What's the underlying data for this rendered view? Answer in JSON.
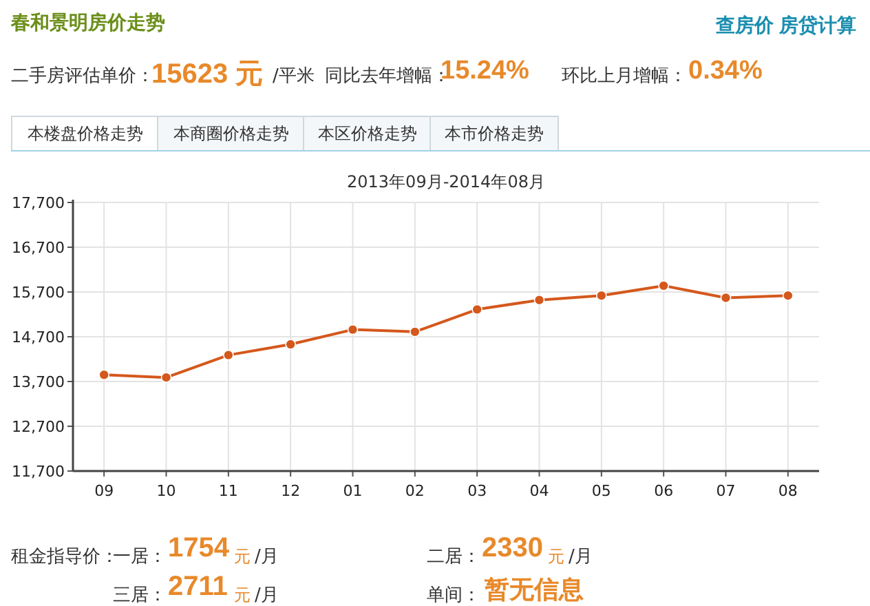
{
  "chart_data": {
    "type": "line",
    "title": "春和景明房价走势",
    "subtitle": "2013年09月-2014年08月",
    "categories": [
      "09",
      "10",
      "11",
      "12",
      "01",
      "02",
      "03",
      "04",
      "05",
      "06",
      "07",
      "08"
    ],
    "series": [
      {
        "color": "#d4581c",
        "values": [
          13850,
          13790,
          14290,
          14530,
          14860,
          14810,
          15310,
          15520,
          15620,
          15840,
          15570,
          15620
        ]
      }
    ],
    "ylim": [
      11700,
      17700
    ],
    "yticks": [
      {
        "value": 11700,
        "label": "11,700"
      },
      {
        "value": 12700,
        "label": "12,700"
      },
      {
        "value": 13700,
        "label": "13,700"
      },
      {
        "value": 14700,
        "label": "14,700"
      },
      {
        "value": 15700,
        "label": "15,700"
      },
      {
        "value": 16700,
        "label": "16,700"
      },
      {
        "value": 17700,
        "label": "17,700"
      }
    ],
    "grid": true,
    "marker": "circle",
    "line_style": "solid",
    "annotations": [
      "查房价",
      "房贷计算",
      "二手房评估单价：",
      "15623 元",
      "/平米",
      "同比去年增幅：",
      "15.24%",
      "环比上月增幅：",
      "0.34%",
      "本楼盘价格走势",
      "本商圈价格走势",
      "本区价格走势",
      "本市价格走势",
      "租金指导价：",
      "一居：",
      "1754",
      "元",
      "/月",
      "二居：",
      "2330",
      "元",
      "/月",
      "三居：",
      "2711",
      "元",
      "/月",
      "单间：",
      "暂无信息"
    ]
  }
}
